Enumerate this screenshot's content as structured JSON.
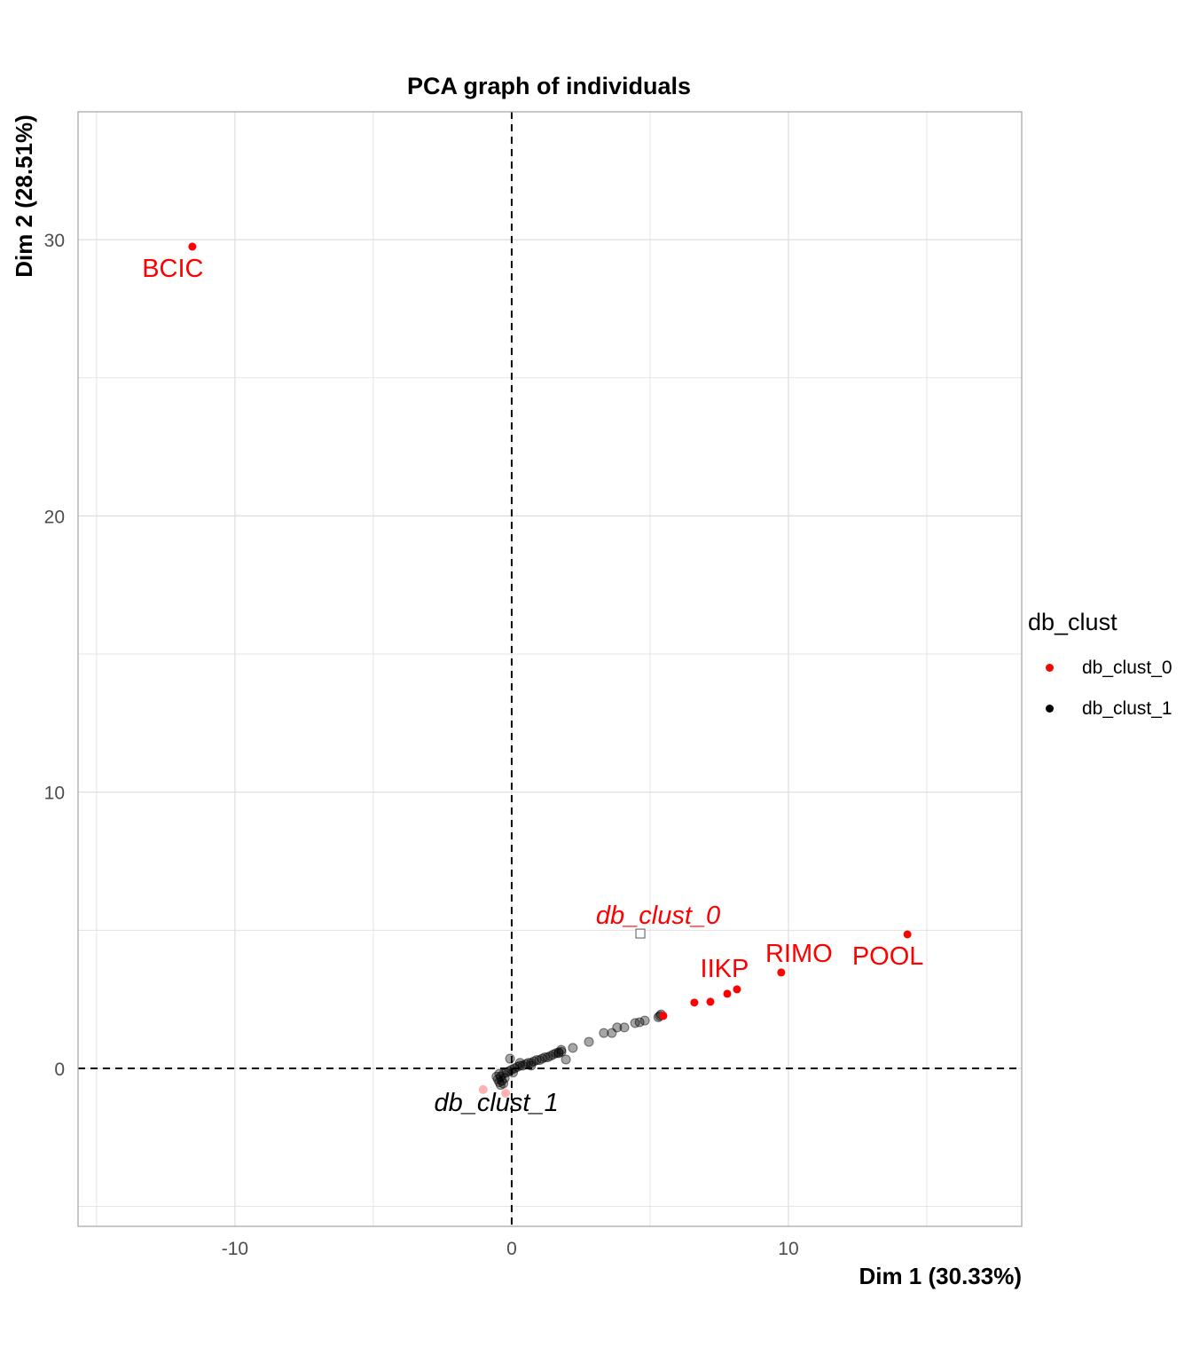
{
  "chart_data": {
    "type": "scatter",
    "title": "PCA graph of individuals",
    "xlabel": "Dim 1 (30.33%)",
    "ylabel": "Dim 2 (28.51%)",
    "xlim": [
      -15.67,
      18.43
    ],
    "ylim": [
      -5.72,
      34.63
    ],
    "xticks": [
      -10,
      0,
      10
    ],
    "yticks": [
      0,
      10,
      20,
      30
    ],
    "grid": true,
    "legend": {
      "title": "db_clust",
      "placement": "right"
    },
    "colors": {
      "db_clust_0": "#ff0000",
      "db_clust_1": "#000000",
      "axis_line": "#000000",
      "grid": "#dddddd",
      "panel_border": "#aaaaaa"
    },
    "series": [
      {
        "name": "db_clust_0",
        "color": "#ff0000",
        "points": [
          [
            -11.54,
            29.75
          ],
          [
            14.3,
            4.85
          ],
          [
            9.74,
            3.47
          ],
          [
            8.14,
            2.86
          ],
          [
            7.79,
            2.7
          ],
          [
            7.18,
            2.41
          ],
          [
            6.6,
            2.38
          ],
          [
            5.48,
            1.9
          ]
        ],
        "faint_points": [
          [
            -1.03,
            -0.77
          ],
          [
            -0.22,
            -0.9
          ]
        ],
        "centroid": [
          4.65,
          4.88
        ]
      },
      {
        "name": "db_clust_1",
        "color": "#000000",
        "points": [
          [
            -0.55,
            -0.3
          ],
          [
            -0.5,
            -0.4
          ],
          [
            -0.45,
            -0.5
          ],
          [
            -0.4,
            -0.6
          ],
          [
            -0.4,
            -0.3
          ],
          [
            -0.35,
            -0.45
          ],
          [
            -0.3,
            -0.2
          ],
          [
            -0.25,
            -0.35
          ],
          [
            -0.2,
            -0.15
          ],
          [
            -0.1,
            -0.1
          ],
          [
            0,
            -0.05
          ],
          [
            0.1,
            0
          ],
          [
            0.2,
            0.05
          ],
          [
            0.3,
            0.1
          ],
          [
            0.4,
            0.1
          ],
          [
            0.5,
            0.15
          ],
          [
            0.6,
            0.2
          ],
          [
            0.7,
            0.2
          ],
          [
            0.8,
            0.25
          ],
          [
            0.9,
            0.3
          ],
          [
            1.0,
            0.3
          ],
          [
            1.1,
            0.35
          ],
          [
            1.2,
            0.4
          ],
          [
            1.3,
            0.4
          ],
          [
            1.4,
            0.45
          ],
          [
            1.5,
            0.5
          ],
          [
            1.6,
            0.55
          ],
          [
            1.7,
            0.55
          ],
          [
            1.8,
            0.6
          ],
          [
            -0.45,
            -0.2
          ],
          [
            -0.3,
            -0.55
          ],
          [
            0.05,
            -0.15
          ],
          [
            0.3,
            0.2
          ],
          [
            0.7,
            0.1
          ],
          [
            -0.06,
            0.35
          ],
          [
            2.79,
            0.96
          ],
          [
            3.33,
            1.28
          ],
          [
            3.62,
            1.28
          ],
          [
            3.81,
            1.48
          ],
          [
            4.07,
            1.48
          ],
          [
            4.46,
            1.64
          ],
          [
            4.62,
            1.67
          ],
          [
            4.81,
            1.73
          ],
          [
            1.96,
            0.32
          ],
          [
            2.21,
            0.74
          ],
          [
            1.79,
            0.67
          ],
          [
            1.7,
            0.58
          ],
          [
            5.3,
            1.85
          ],
          [
            5.35,
            1.9
          ],
          [
            5.4,
            1.95
          ]
        ],
        "centroid": [
          -0.3,
          -0.2
        ]
      }
    ],
    "point_labels": [
      {
        "text": "BCIC",
        "series": "db_clust_0",
        "point": 0
      },
      {
        "text": "POOL",
        "series": "db_clust_0",
        "point": 1
      },
      {
        "text": "RIMO",
        "series": "db_clust_0",
        "point": 2
      },
      {
        "text": "IIKP",
        "series": "db_clust_0",
        "point": 3
      }
    ],
    "centroid_labels": [
      {
        "text": "db_clust_0",
        "series": "db_clust_0"
      },
      {
        "text": "db_clust_1",
        "series": "db_clust_1"
      }
    ]
  }
}
